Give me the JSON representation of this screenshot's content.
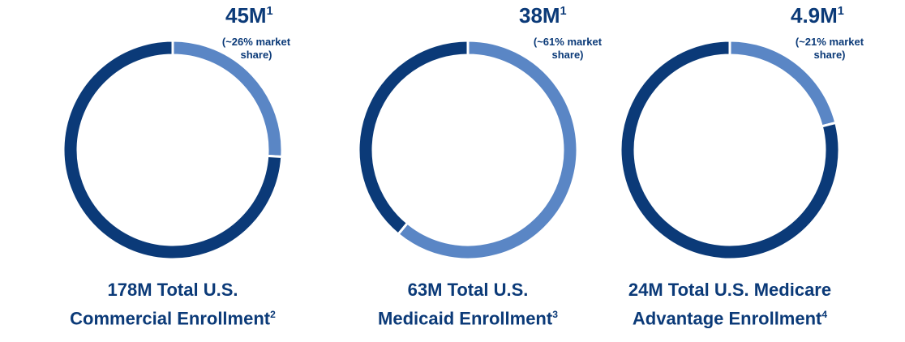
{
  "chart_data": [
    {
      "type": "pie",
      "headline": "45M",
      "headline_note": "1",
      "values": [
        26,
        74
      ],
      "value_labels": [
        "(~26% market share)",
        null
      ],
      "colors": [
        "#5a86c5",
        "#0b3a78"
      ],
      "title_lines": [
        "178M Total U.S.",
        "Commercial Enrollment"
      ],
      "title_note": "2"
    },
    {
      "type": "pie",
      "headline": "38M",
      "headline_note": "1",
      "values": [
        61,
        39
      ],
      "value_labels": [
        "(~61% market share)",
        null
      ],
      "colors": [
        "#5a86c5",
        "#0b3a78"
      ],
      "title_lines": [
        "63M Total U.S.",
        "Medicaid Enrollment"
      ],
      "title_note": "3"
    },
    {
      "type": "pie",
      "headline": "4.9M",
      "headline_note": "1",
      "values": [
        21,
        79
      ],
      "value_labels": [
        "(~21% market share)",
        null
      ],
      "colors": [
        "#5a86c5",
        "#0b3a78"
      ],
      "title_lines": [
        "24M Total U.S. Medicare",
        "Advantage Enrollment"
      ],
      "title_note": "4"
    }
  ]
}
